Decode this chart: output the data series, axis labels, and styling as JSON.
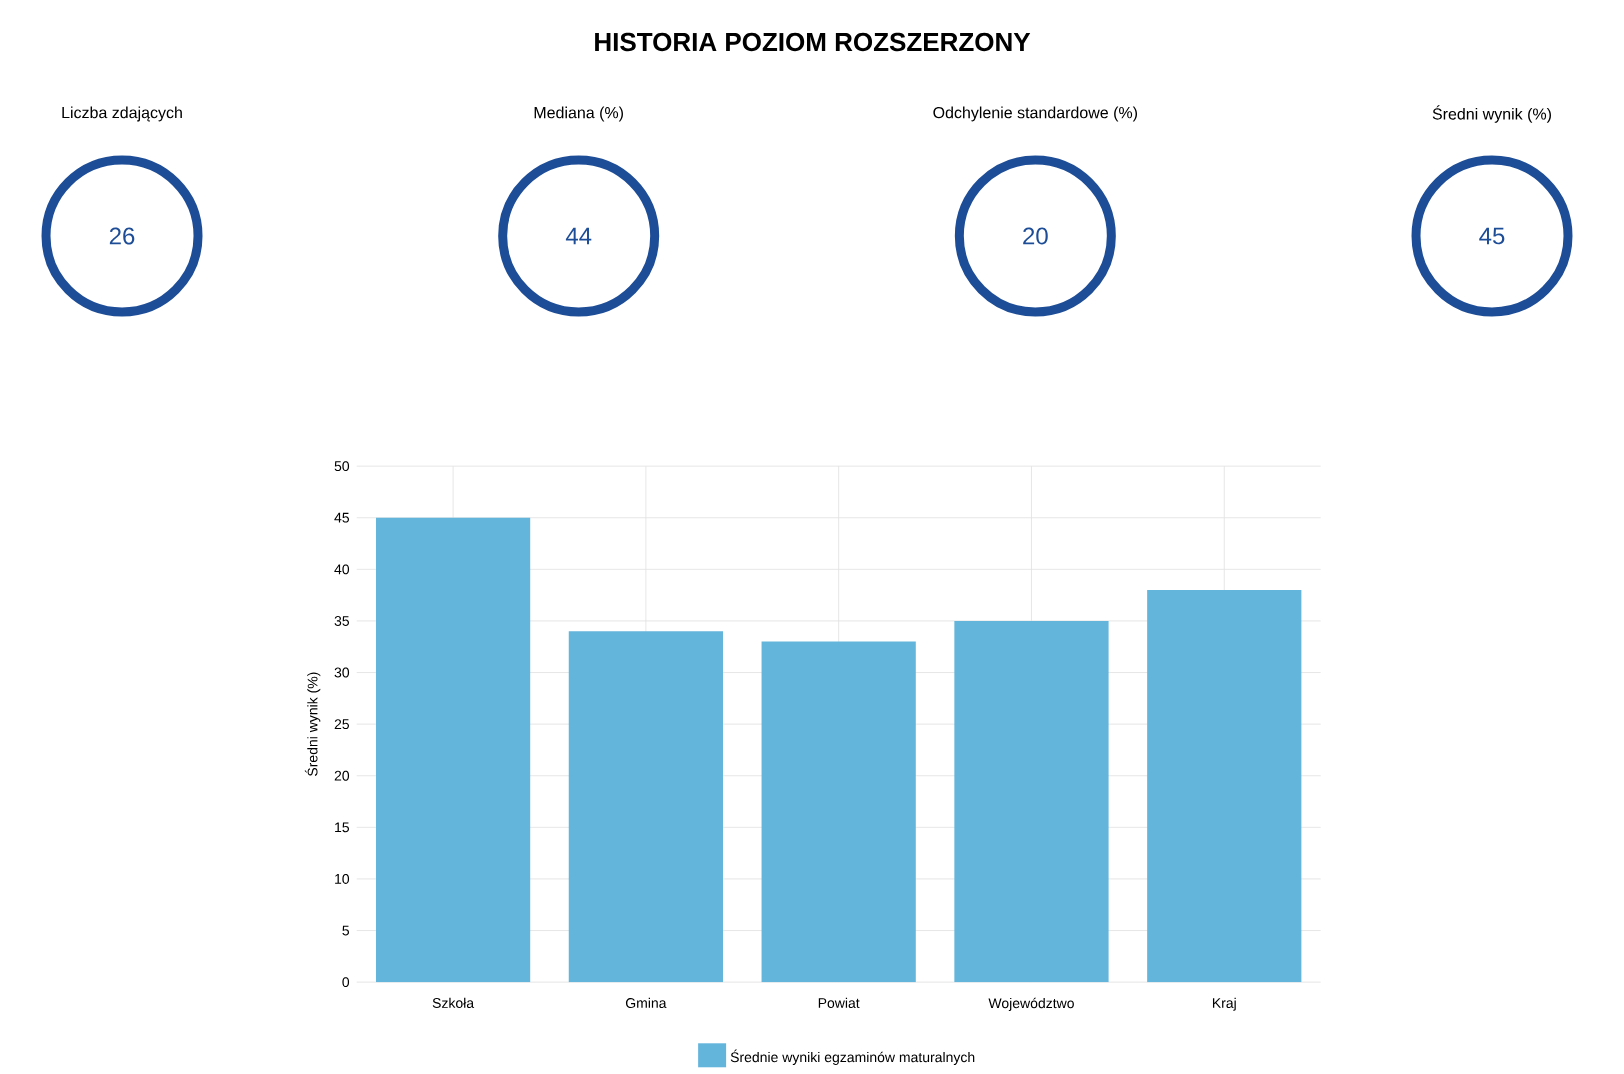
{
  "chart_data": [
    {
      "type": "other",
      "title": "HISTORIA POZIOM ROZSZERZONY",
      "categories": [
        "Liczba zdających",
        "Mediana (%)",
        "Odchylenie standardowe (%)",
        "Średni wynik (%)"
      ],
      "values": [
        26,
        44,
        20,
        45
      ],
      "color": "#1e4d97",
      "data_labels": true
    },
    {
      "type": "bar",
      "categories": [
        "Szkoła",
        "Gmina",
        "Powiat",
        "Województwo",
        "Kraj"
      ],
      "ylabel": "Średni wynik (%)",
      "ylim": [
        0,
        50
      ],
      "yticks": [
        0,
        5,
        10,
        15,
        20,
        25,
        30,
        35,
        40,
        45,
        50
      ],
      "grid": true,
      "legend": "bottom",
      "series": [
        {
          "name": "Średnie wyniki egzaminów maturalnych",
          "color": "#64b5dc",
          "values": [
            45,
            34,
            33,
            35,
            38
          ]
        }
      ]
    }
  ]
}
